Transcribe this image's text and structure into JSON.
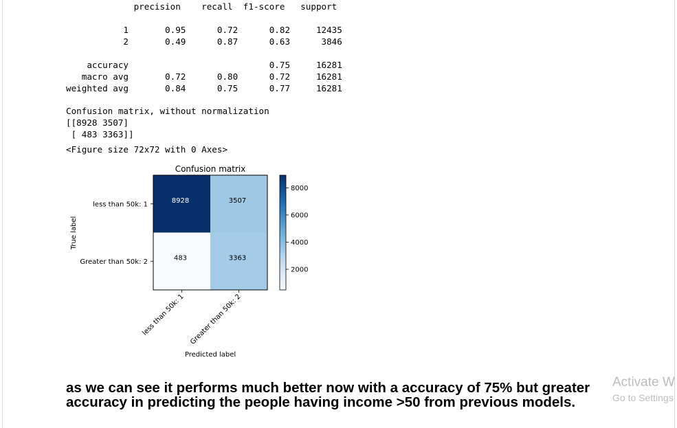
{
  "report": {
    "text": "             precision    recall  f1-score   support\n\n           1       0.95      0.72      0.82     12435\n           2       0.49      0.87      0.63      3846\n\n    accuracy                           0.75     16281\n   macro avg       0.72      0.80      0.72     16281\nweighted avg       0.84      0.75      0.77     16281"
  },
  "confusion_text": "Confusion matrix, without normalization\n[[8928 3507]\n [ 483 3363]]",
  "figure_size": "<Figure size 72x72 with 0 Axes>",
  "chart_data": {
    "type": "heatmap",
    "title": "Confusion matrix",
    "xlabel": "Predicted label",
    "ylabel": "True label",
    "row_labels": [
      "less than 50k: 1",
      "Greater than 50k: 2"
    ],
    "col_labels": [
      "less than 50k: 1",
      "Greater than 50k: 2"
    ],
    "values": [
      [
        8928,
        3507
      ],
      [
        483,
        3363
      ]
    ],
    "colormap": "Blues",
    "colorbar_ticks": [
      2000,
      4000,
      6000,
      8000
    ],
    "colorbar_range": [
      483,
      8928
    ]
  },
  "markdown": "as we can see it performs much better now with a accuracy of 75% but greater accuracy in predicting the people having income >50 from previous models.",
  "watermark": {
    "line1": "Activate W",
    "line2": "Go to Settings"
  }
}
